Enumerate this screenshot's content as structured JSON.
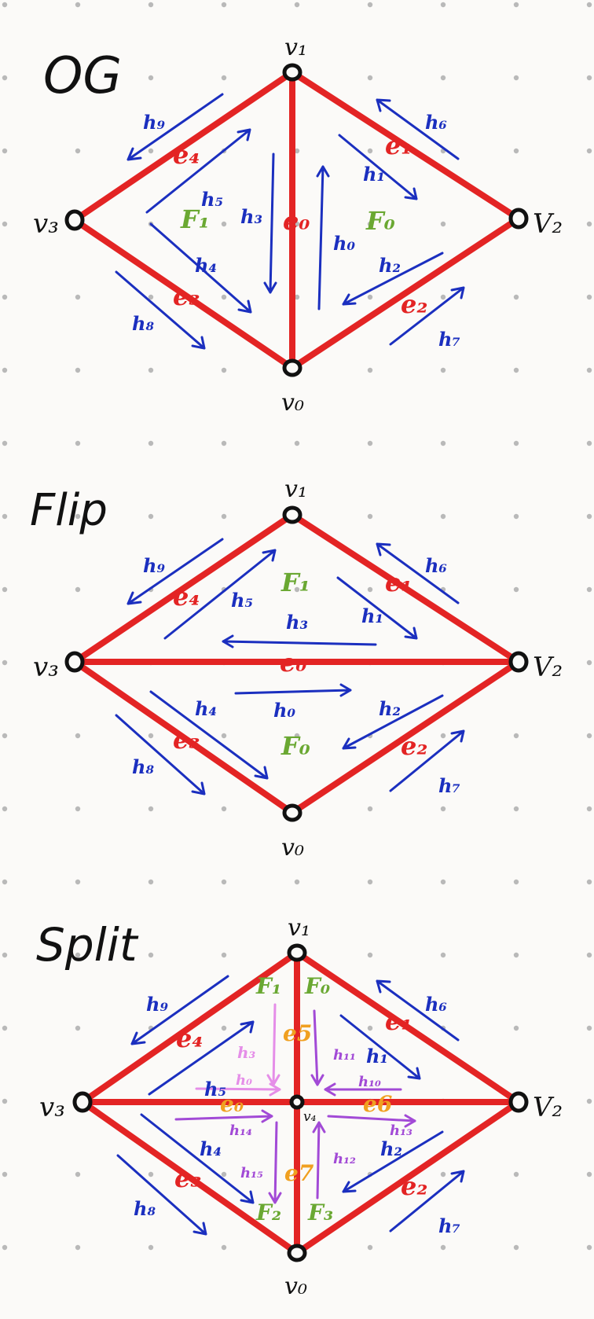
{
  "colors": {
    "background": "#fbfaf8",
    "grid_dot": "#b9b9b9",
    "edge": "#e32424",
    "halfedge": "#1b2fbf",
    "face": "#6aa832",
    "vertex": "#111111",
    "new_halfedge": "#a24ad6",
    "new_halfedge_light": "#e58ee8",
    "new_edge": "#f0a020"
  },
  "panels": [
    {
      "title": "OG",
      "vertices": [
        "v₁",
        "V₂",
        "v₃",
        "v₀"
      ],
      "edges": [
        "e₀",
        "e₁",
        "e₂",
        "e₃",
        "e₄"
      ],
      "halfedges": [
        "h₉",
        "h₆",
        "h₅",
        "h₁",
        "h₃",
        "h₀",
        "h₄",
        "h₂",
        "h₈",
        "h₇"
      ],
      "faces": [
        "F₁",
        "F₀"
      ]
    },
    {
      "title": "Flip",
      "vertices": [
        "v₁",
        "V₂",
        "v₃",
        "v₀"
      ],
      "edges": [
        "e₀",
        "e₁",
        "e₂",
        "e₃",
        "e₄"
      ],
      "halfedges": [
        "h₉",
        "h₆",
        "h₅",
        "h₁",
        "h₃",
        "h₀",
        "h₄",
        "h₂",
        "h₈",
        "h₇"
      ],
      "faces": [
        "F₁",
        "F₀"
      ]
    },
    {
      "title": "Split",
      "vertices": [
        "v₁",
        "V₂",
        "v₃",
        "v₀",
        "v₄"
      ],
      "edges": [
        "e₀",
        "e₁",
        "e₂",
        "e₃",
        "e₄",
        "e5",
        "e6",
        "e7"
      ],
      "halfedges": [
        "h₉",
        "h₆",
        "h₅",
        "h₁",
        "h₃",
        "h₀",
        "h₄",
        "h₂",
        "h₈",
        "h₇",
        "h₁₁",
        "h₁₀",
        "h₁₄",
        "h₁₃",
        "h₁₂",
        "h₁₅"
      ],
      "faces": [
        "F₁",
        "F₀",
        "F₂",
        "F₃"
      ]
    }
  ]
}
